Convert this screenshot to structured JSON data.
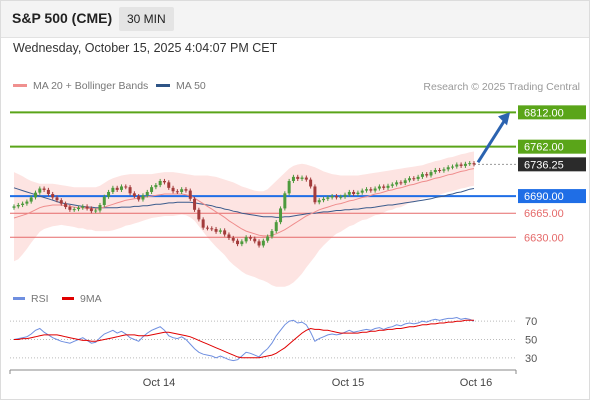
{
  "header": {
    "title": "S&P 500 (CME)",
    "interval": "30 MIN",
    "datetime": "Wednesday, October 15, 2025 4:04:07 PM CET"
  },
  "legend": {
    "ma20": "MA 20 + Bollinger Bands",
    "ma50": "MA 50",
    "rsi": "RSI",
    "ma9": "9MA"
  },
  "credit": "Research © 2025 Trading Central",
  "colors": {
    "green": "#5aa519",
    "blue": "#1f6ee6",
    "red": "#e56a6a",
    "dark": "#2b2b2b",
    "band": "#fde4e2",
    "ma50": "#3b5b8c"
  },
  "chart_data": [
    {
      "type": "candlestick",
      "title": "S&P 500 (CME)",
      "ylim": [
        6575,
        6830
      ],
      "x_labels": [
        "Oct 14",
        "Oct 15",
        "Oct 16"
      ],
      "levels": [
        {
          "label": "6812.00",
          "value": 6812,
          "color": "green",
          "style": "line"
        },
        {
          "label": "6762.00",
          "value": 6762,
          "color": "green",
          "style": "line"
        },
        {
          "label": "6736.25",
          "value": 6736.25,
          "color": "dark",
          "style": "last"
        },
        {
          "label": "6690.00",
          "value": 6690,
          "color": "blue",
          "style": "line"
        },
        {
          "label": "6665.00",
          "value": 6665,
          "color": "red",
          "style": "thin"
        },
        {
          "label": "6630.00",
          "value": 6630,
          "color": "red",
          "style": "thin"
        }
      ],
      "close": [
        6675,
        6677,
        6679,
        6682,
        6688,
        6695,
        6701,
        6699,
        6693,
        6688,
        6684,
        6679,
        6674,
        6670,
        6671,
        6673,
        6675,
        6672,
        6668,
        6669,
        6677,
        6689,
        6696,
        6702,
        6699,
        6704,
        6703,
        6694,
        6690,
        6685,
        6691,
        6696,
        6703,
        6706,
        6712,
        6710,
        6702,
        6697,
        6696,
        6700,
        6698,
        6686,
        6670,
        6656,
        6644,
        6643,
        6642,
        6638,
        6640,
        6634,
        6629,
        6625,
        6620,
        6624,
        6630,
        6628,
        6624,
        6618,
        6625,
        6631,
        6639,
        6652,
        6672,
        6694,
        6712,
        6718,
        6715,
        6717,
        6714,
        6704,
        6681,
        6684,
        6686,
        6688,
        6690,
        6688,
        6689,
        6692,
        6696,
        6693,
        6695,
        6698,
        6700,
        6698,
        6701,
        6704,
        6702,
        6705,
        6707,
        6710,
        6709,
        6713,
        6716,
        6715,
        6718,
        6722,
        6720,
        6725,
        6728,
        6727,
        6729,
        6732,
        6733,
        6736,
        6734,
        6737,
        6738,
        6736.25
      ],
      "ma20": [
        6658,
        6660,
        6662,
        6664,
        6667,
        6670,
        6673,
        6675,
        6676,
        6677,
        6677,
        6677,
        6676,
        6675,
        6674,
        6673,
        6673,
        6672,
        6672,
        6671,
        6672,
        6674,
        6676,
        6678,
        6680,
        6682,
        6684,
        6685,
        6686,
        6687,
        6688,
        6689,
        6690,
        6691,
        6692,
        6693,
        6693,
        6693,
        6693,
        6693,
        6692,
        6690,
        6687,
        6683,
        6679,
        6675,
        6671,
        6667,
        6663,
        6659,
        6654,
        6650,
        6646,
        6642,
        6639,
        6637,
        6635,
        6633,
        6632,
        6632,
        6633,
        6635,
        6638,
        6641,
        6645,
        6649,
        6653,
        6657,
        6661,
        6664,
        6667,
        6670,
        6672,
        6674,
        6676,
        6678,
        6679,
        6681,
        6683,
        6684,
        6686,
        6688,
        6689,
        6691,
        6693,
        6694,
        6696,
        6698,
        6699,
        6701,
        6702,
        6704,
        6706,
        6707,
        6709,
        6711,
        6712,
        6714,
        6716,
        6717,
        6719,
        6721,
        6722,
        6724,
        6726,
        6727,
        6729,
        6730
      ],
      "upper_band": [
        6725,
        6722,
        6719,
        6715,
        6712,
        6710,
        6708,
        6708,
        6708,
        6708,
        6707,
        6706,
        6705,
        6704,
        6703,
        6703,
        6703,
        6703,
        6703,
        6703,
        6705,
        6709,
        6713,
        6716,
        6718,
        6720,
        6721,
        6722,
        6722,
        6722,
        6722,
        6722,
        6722,
        6723,
        6724,
        6725,
        6725,
        6725,
        6724,
        6723,
        6722,
        6721,
        6720,
        6720,
        6720,
        6720,
        6719,
        6718,
        6716,
        6714,
        6712,
        6710,
        6707,
        6704,
        6702,
        6700,
        6698,
        6697,
        6697,
        6700,
        6706,
        6712,
        6718,
        6724,
        6730,
        6734,
        6736,
        6737,
        6736,
        6734,
        6732,
        6729,
        6726,
        6724,
        6722,
        6721,
        6720,
        6720,
        6720,
        6720,
        6720,
        6721,
        6722,
        6723,
        6724,
        6725,
        6726,
        6727,
        6728,
        6729,
        6730,
        6731,
        6732,
        6733,
        6734,
        6735,
        6737,
        6739,
        6741,
        6742,
        6744,
        6746,
        6747,
        6749,
        6751,
        6752,
        6754,
        6755
      ],
      "lower_band": [
        6595,
        6598,
        6605,
        6613,
        6622,
        6630,
        6638,
        6642,
        6644,
        6646,
        6647,
        6648,
        6647,
        6646,
        6645,
        6643,
        6643,
        6641,
        6641,
        6639,
        6639,
        6639,
        6639,
        6640,
        6642,
        6644,
        6647,
        6648,
        6650,
        6652,
        6654,
        6656,
        6658,
        6659,
        6660,
        6661,
        6661,
        6661,
        6662,
        6663,
        6662,
        6659,
        6654,
        6646,
        6638,
        6630,
        6623,
        6616,
        6610,
        6604,
        6596,
        6590,
        6585,
        6580,
        6576,
        6574,
        6572,
        6569,
        6567,
        6564,
        6560,
        6558,
        6558,
        6558,
        6560,
        6564,
        6570,
        6577,
        6586,
        6594,
        6602,
        6611,
        6618,
        6624,
        6630,
        6635,
        6638,
        6642,
        6646,
        6648,
        6652,
        6655,
        6656,
        6659,
        6662,
        6663,
        6666,
        6669,
        6670,
        6673,
        6674,
        6677,
        6680,
        6681,
        6684,
        6687,
        6687,
        6689,
        6691,
        6692,
        6694,
        6696,
        6697,
        6699,
        6701,
        6702,
        6704,
        6705
      ],
      "ma50": [
        6702,
        6700,
        6698,
        6696,
        6694,
        6692,
        6690,
        6688,
        6686,
        6684,
        6682,
        6680,
        6679,
        6678,
        6677,
        6676,
        6675,
        6674,
        6674,
        6673,
        6673,
        6673,
        6673,
        6673,
        6673,
        6674,
        6674,
        6674,
        6675,
        6675,
        6676,
        6676,
        6677,
        6678,
        6678,
        6679,
        6680,
        6680,
        6681,
        6681,
        6681,
        6681,
        6680,
        6679,
        6678,
        6677,
        6676,
        6674,
        6673,
        6671,
        6670,
        6668,
        6667,
        6665,
        6664,
        6663,
        6662,
        6661,
        6660,
        6660,
        6660,
        6659,
        6659,
        6660,
        6660,
        6661,
        6662,
        6663,
        6664,
        6665,
        6665,
        6666,
        6667,
        6667,
        6668,
        6669,
        6669,
        6670,
        6670,
        6671,
        6671,
        6672,
        6673,
        6673,
        6674,
        6675,
        6676,
        6677,
        6677,
        6678,
        6679,
        6680,
        6681,
        6682,
        6683,
        6684,
        6685,
        6686,
        6688,
        6689,
        6690,
        6692,
        6693,
        6695,
        6696,
        6698,
        6700,
        6701
      ]
    },
    {
      "type": "line",
      "title": "RSI",
      "ylim": [
        20,
        80
      ],
      "y_ticks": [
        70,
        50,
        30
      ],
      "rsi": [
        50,
        51,
        52,
        53,
        56,
        60,
        62,
        58,
        55,
        52,
        50,
        48,
        47,
        46,
        48,
        50,
        52,
        49,
        46,
        47,
        52,
        56,
        58,
        60,
        57,
        59,
        56,
        52,
        50,
        48,
        53,
        57,
        60,
        62,
        64,
        60,
        54,
        52,
        51,
        53,
        50,
        45,
        40,
        36,
        34,
        33,
        32,
        30,
        32,
        30,
        28,
        27,
        28,
        32,
        36,
        35,
        33,
        31,
        36,
        40,
        46,
        54,
        60,
        66,
        70,
        71,
        68,
        69,
        66,
        58,
        48,
        51,
        53,
        55,
        56,
        55,
        56,
        58,
        60,
        58,
        59,
        60,
        61,
        60,
        62,
        63,
        61,
        63,
        64,
        66,
        65,
        67,
        68,
        67,
        68,
        70,
        69,
        71,
        72,
        71,
        72,
        73,
        73,
        74,
        72,
        73,
        72,
        70
      ],
      "ma9": [
        50,
        50,
        51,
        51,
        52,
        53,
        54,
        55,
        55,
        55,
        55,
        54,
        53,
        52,
        51,
        50,
        49,
        49,
        48,
        48,
        49,
        50,
        51,
        52,
        53,
        54,
        55,
        55,
        55,
        54,
        54,
        54,
        55,
        56,
        57,
        58,
        58,
        57,
        56,
        55,
        54,
        53,
        51,
        49,
        47,
        45,
        43,
        41,
        39,
        37,
        35,
        33,
        31,
        30,
        30,
        30,
        30,
        30,
        31,
        32,
        33,
        35,
        38,
        41,
        45,
        49,
        53,
        57,
        60,
        62,
        61,
        61,
        60,
        60,
        59,
        58,
        57,
        57,
        57,
        57,
        57,
        58,
        58,
        59,
        59,
        60,
        60,
        61,
        61,
        62,
        62,
        63,
        64,
        64,
        65,
        66,
        66,
        67,
        67,
        68,
        68,
        69,
        69,
        70,
        70,
        71,
        71,
        71
      ]
    }
  ]
}
